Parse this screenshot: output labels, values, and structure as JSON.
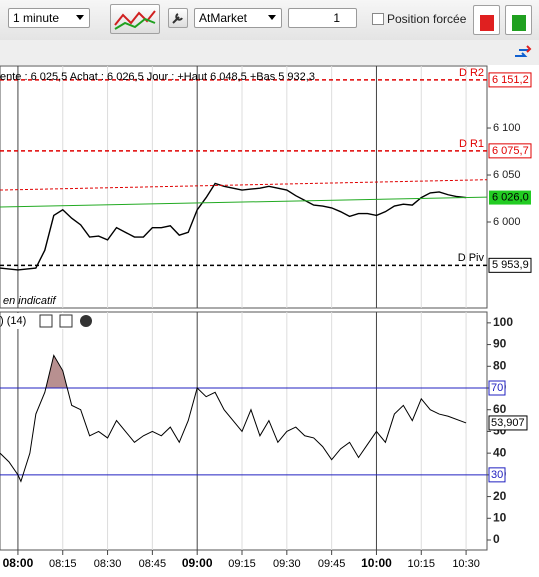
{
  "toolbar": {
    "interval": "1 minute",
    "order_type": "AtMarket",
    "quantity": "1",
    "checkbox_label": "Position forcée"
  },
  "chart_data": [
    {
      "type": "line",
      "title": "ente : 6 025,5 Achat : 6 026,5 Jour : +Haut 6 048,5 +Bas 5 932,3",
      "annotation": "en indicatif",
      "x": [
        474,
        480,
        486,
        489,
        492,
        495,
        498,
        501,
        504,
        507,
        510,
        513,
        516,
        519,
        522,
        525,
        528,
        531,
        534,
        537,
        540,
        543,
        546,
        549,
        552,
        555,
        558,
        561,
        564,
        567,
        570,
        573,
        576,
        579,
        582,
        585,
        588,
        591,
        594,
        597,
        600,
        603,
        606,
        609,
        612,
        615,
        618,
        621,
        624,
        627,
        630
      ],
      "series": [
        {
          "color": "#000000",
          "values": [
            5951,
            5949,
            5951,
            5970,
            6007,
            6013,
            6004,
            5997,
            5984,
            5985,
            5981,
            5994,
            5989,
            5984,
            5984,
            5994,
            5994,
            5996,
            5986,
            5989,
            6013,
            6026,
            6041,
            6038,
            6036,
            6034,
            6035,
            6036,
            6038,
            6036,
            6034,
            6028,
            6023,
            6018,
            6017,
            6015,
            6011,
            6006,
            6009,
            6009,
            6007,
            6011,
            6017,
            6019,
            6018,
            6026,
            6031,
            6032,
            6029,
            6027,
            6026
          ]
        },
        {
          "color": "#e00000",
          "dashed": true,
          "x": [
            474,
            637
          ],
          "values": [
            6034,
            6045
          ]
        },
        {
          "color": "#22aa22",
          "x": [
            474,
            637
          ],
          "values": [
            6016,
            6026.5
          ]
        }
      ],
      "levels": [
        {
          "name": "D R2",
          "value": 6151.2,
          "label": "6 151,2",
          "color": "#e00000"
        },
        {
          "name": "D R1",
          "value": 6075.7,
          "label": "6 075,7",
          "color": "#e00000"
        },
        {
          "name": "D Piv",
          "value": 5953.9,
          "label": "5 953,9",
          "color": "#000000"
        }
      ],
      "current": {
        "value": 6026,
        "label": "6 026,0",
        "color": "#22cc22"
      },
      "xlim": [
        474,
        637
      ],
      "ylim": [
        5908.5,
        6166
      ],
      "yticks": [
        {
          "value": 6100,
          "label": "6 100"
        },
        {
          "value": 6050,
          "label": "6 050"
        },
        {
          "value": 6000,
          "label": "6 000"
        }
      ]
    },
    {
      "type": "line",
      "title": ") (14)",
      "x": [
        474,
        477,
        480,
        481,
        484,
        486,
        489,
        492,
        495,
        498,
        501,
        504,
        507,
        510,
        513,
        516,
        519,
        522,
        525,
        528,
        531,
        534,
        537,
        540,
        543,
        546,
        549,
        552,
        555,
        558,
        561,
        564,
        567,
        570,
        573,
        576,
        579,
        582,
        585,
        588,
        591,
        594,
        597,
        600,
        603,
        606,
        609,
        612,
        615,
        618,
        621,
        624,
        630
      ],
      "values": [
        40,
        36,
        30,
        27,
        40,
        58,
        68,
        85,
        78,
        62,
        60,
        48,
        50,
        47,
        55,
        50,
        45,
        48,
        50,
        48,
        52,
        45,
        55,
        70,
        66,
        68,
        60,
        55,
        50,
        60,
        48,
        55,
        45,
        50,
        52,
        48,
        47,
        43,
        37,
        42,
        45,
        38,
        44,
        50,
        45,
        58,
        62,
        55,
        65,
        60,
        58,
        57,
        53.907
      ],
      "last_value_label": "53,907",
      "color": "#000000",
      "fill_color": "#b89090",
      "levels": [
        {
          "value": 70,
          "color": "#2020c0"
        },
        {
          "value": 30,
          "color": "#2020c0"
        }
      ],
      "xlim": [
        474,
        637
      ],
      "ylim": [
        -4.6,
        105
      ],
      "yticks": [
        0,
        10,
        20,
        30,
        40,
        50,
        60,
        70,
        80,
        90,
        100
      ],
      "xticks": [
        {
          "value": 480,
          "label": "08:00"
        },
        {
          "value": 495,
          "label": "08:15"
        },
        {
          "value": 510,
          "label": "08:30"
        },
        {
          "value": 525,
          "label": "08:45"
        },
        {
          "value": 540,
          "label": "09:00"
        },
        {
          "value": 555,
          "label": "09:15"
        },
        {
          "value": 570,
          "label": "09:30"
        },
        {
          "value": 585,
          "label": "09:45"
        },
        {
          "value": 600,
          "label": "10:00"
        },
        {
          "value": 615,
          "label": "10:15"
        },
        {
          "value": 630,
          "label": "10:30"
        }
      ]
    }
  ]
}
